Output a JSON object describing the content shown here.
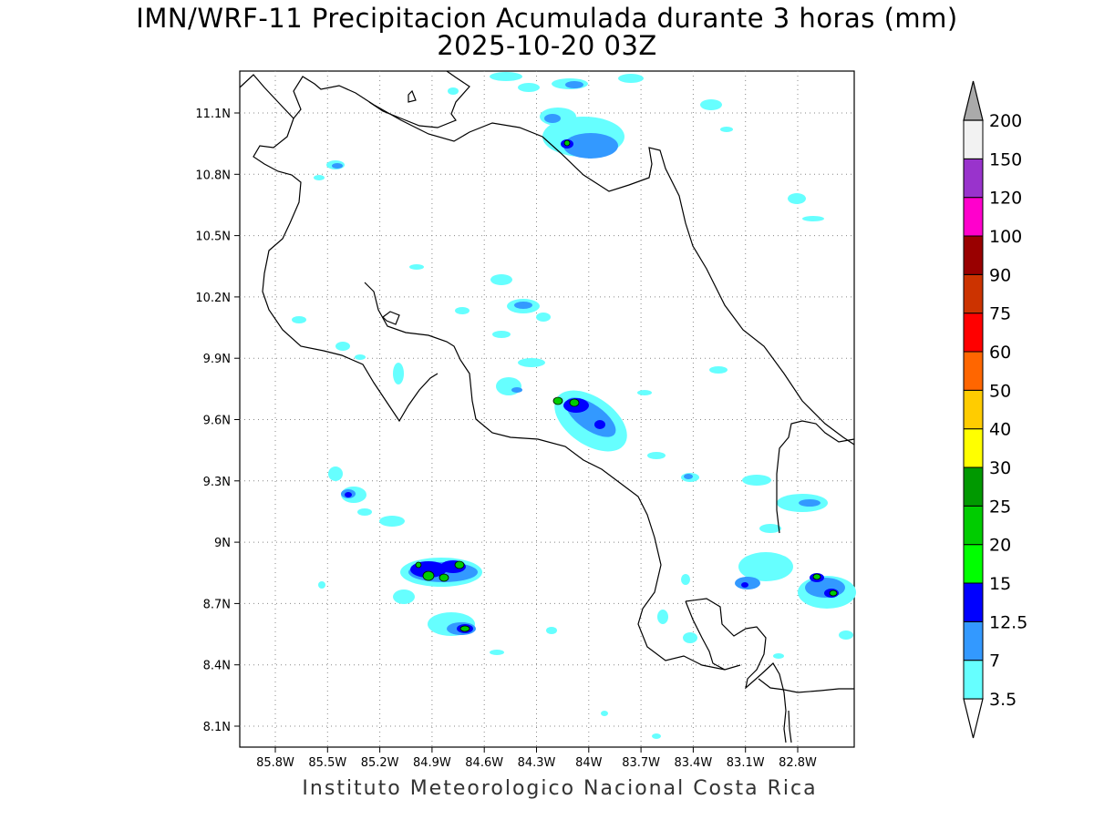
{
  "title": "IMN/WRF-11 Precipitacion Acumulada durante 3 horas (mm)",
  "subtitle": "2025-10-20 03Z",
  "footer": "Instituto Meteorologico Nacional Costa Rica",
  "axes": {
    "x_ticks": [
      "85.8W",
      "85.5W",
      "85.2W",
      "84.9W",
      "84.6W",
      "84.3W",
      "84W",
      "83.7W",
      "83.4W",
      "83.1W",
      "82.8W"
    ],
    "y_ticks": [
      "11.1N",
      "10.8N",
      "10.5N",
      "10.2N",
      "9.9N",
      "9.6N",
      "9.3N",
      "9N",
      "8.7N",
      "8.4N",
      "8.1N"
    ]
  },
  "colorbar": {
    "levels": [
      "3.5",
      "7",
      "12.5",
      "15",
      "20",
      "25",
      "30",
      "40",
      "50",
      "60",
      "75",
      "90",
      "100",
      "120",
      "150",
      "200"
    ],
    "colors": [
      "#66ffff",
      "#3399ff",
      "#0000ff",
      "#00ff00",
      "#00cc00",
      "#009900",
      "#ffff00",
      "#ffcc00",
      "#ff6600",
      "#ff0000",
      "#cc3300",
      "#990000",
      "#ff00cc",
      "#9933cc",
      "#f2f2f2",
      "#aaaaaa"
    ],
    "under_color": "#ffffff",
    "over_color": "#aaaaaa"
  },
  "precip_palette": {
    "light": "#66ffff",
    "moderate": "#3399ff",
    "heavy": "#0000ff",
    "very_heavy": "#00cc00"
  }
}
